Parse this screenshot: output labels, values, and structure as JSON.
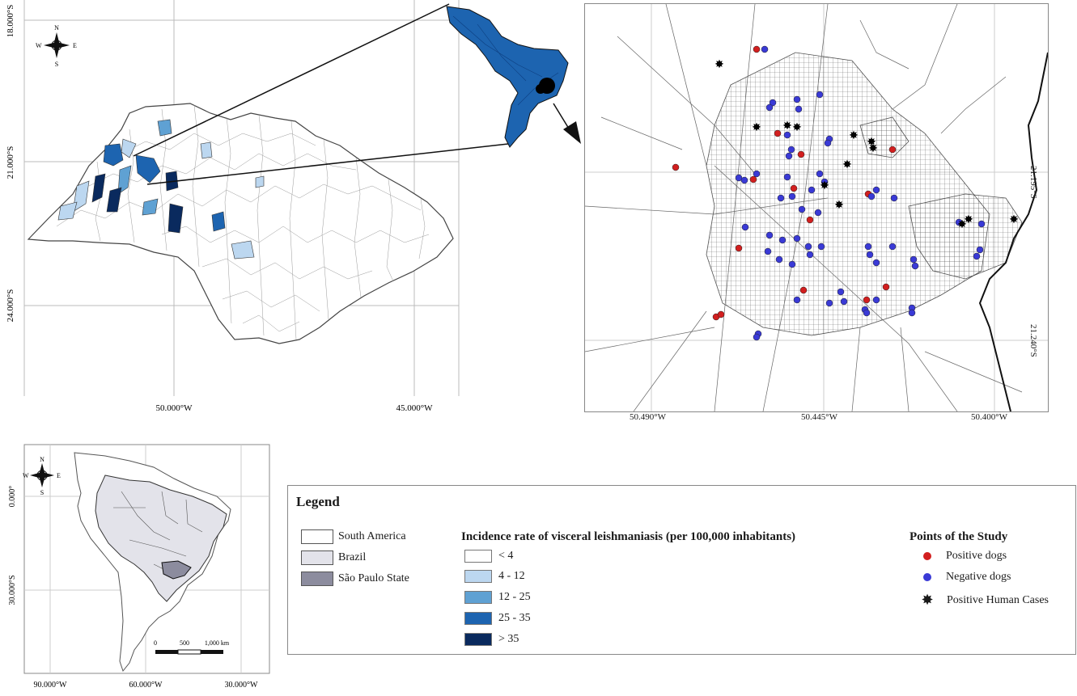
{
  "state_map": {
    "lat_labels": [
      "18.000°S",
      "21.000°S",
      "24.000°S"
    ],
    "lon_labels": [
      "50.000°W",
      "45.000°W"
    ],
    "compass": {
      "n": "N",
      "s": "S",
      "e": "E",
      "w": "W"
    }
  },
  "city_map": {
    "lat_labels": [
      "21.195°S",
      "21.240°S"
    ],
    "lon_labels": [
      "50.490°W",
      "50.445°W",
      "50.400°W"
    ]
  },
  "south_america_map": {
    "lat_labels": [
      "0.000°",
      "30.000°S"
    ],
    "lon_labels": [
      "90.000°W",
      "60.000°W",
      "30.000°W"
    ],
    "compass": {
      "n": "N",
      "s": "S",
      "e": "E",
      "w": "W"
    },
    "scale_bar": {
      "ticks": [
        "0",
        "500",
        "1,000 km"
      ]
    }
  },
  "legend": {
    "title": "Legend",
    "areas": [
      {
        "label": "South America",
        "color": "#ffffff"
      },
      {
        "label": "Brazil",
        "color": "#e3e3ea"
      },
      {
        "label": "São Paulo State",
        "color": "#8c8c9e"
      }
    ],
    "incidence_title": "Incidence rate of visceral leishmaniasis (per 100,000 inhabitants)",
    "incidence_classes": [
      {
        "label": "< 4",
        "color": "#ffffff"
      },
      {
        "label": "4 - 12",
        "color": "#bcd7f0"
      },
      {
        "label": "12 - 25",
        "color": "#5fa1d3"
      },
      {
        "label": "25 - 35",
        "color": "#1d64b0"
      },
      {
        "label": "> 35",
        "color": "#0a2a5e"
      }
    ],
    "points_title": "Points of the Study",
    "points": [
      {
        "label": "Positive dogs",
        "color": "#d21f1f"
      },
      {
        "label": "Negative dogs",
        "color": "#3a3ad6"
      },
      {
        "label": "Positive Human Cases",
        "color": "#000000"
      }
    ]
  }
}
